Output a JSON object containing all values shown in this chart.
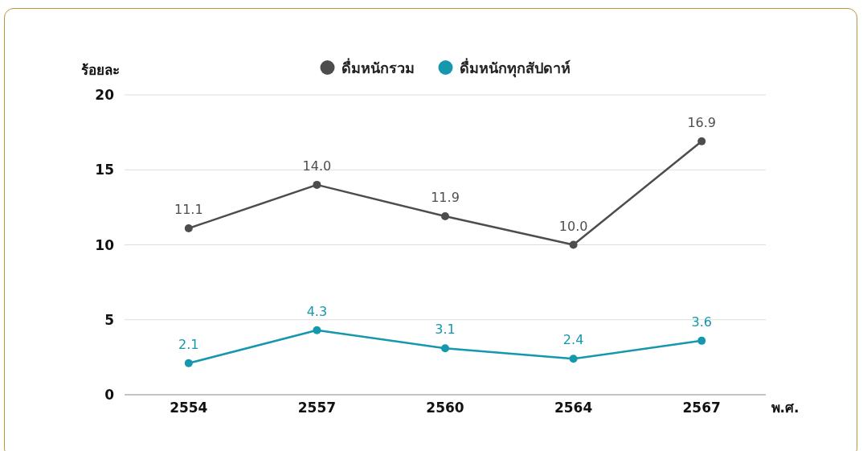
{
  "chart_data": {
    "type": "line",
    "ylabel": "ร้อยละ",
    "xlabel": "พ.ศ.",
    "categories": [
      "2554",
      "2557",
      "2560",
      "2564",
      "2567"
    ],
    "series": [
      {
        "name": "ดื่มหนักรวม",
        "color": "#4d4d4d",
        "values": [
          11.1,
          14.0,
          11.9,
          10.0,
          16.9
        ],
        "value_labels": [
          "11.1",
          "14.0",
          "11.9",
          "10.0",
          "16.9"
        ]
      },
      {
        "name": "ดื่มหนักทุกสัปดาห์",
        "color": "#1597ae",
        "values": [
          2.1,
          4.3,
          3.1,
          2.4,
          3.6
        ],
        "value_labels": [
          "2.1",
          "4.3",
          "3.1",
          "2.4",
          "3.6"
        ]
      }
    ],
    "ylim": [
      0,
      20
    ],
    "yticks": [
      0,
      5,
      10,
      15,
      20
    ],
    "grid": "y",
    "legend": "top",
    "marker": "circle",
    "line_style": "solid"
  }
}
